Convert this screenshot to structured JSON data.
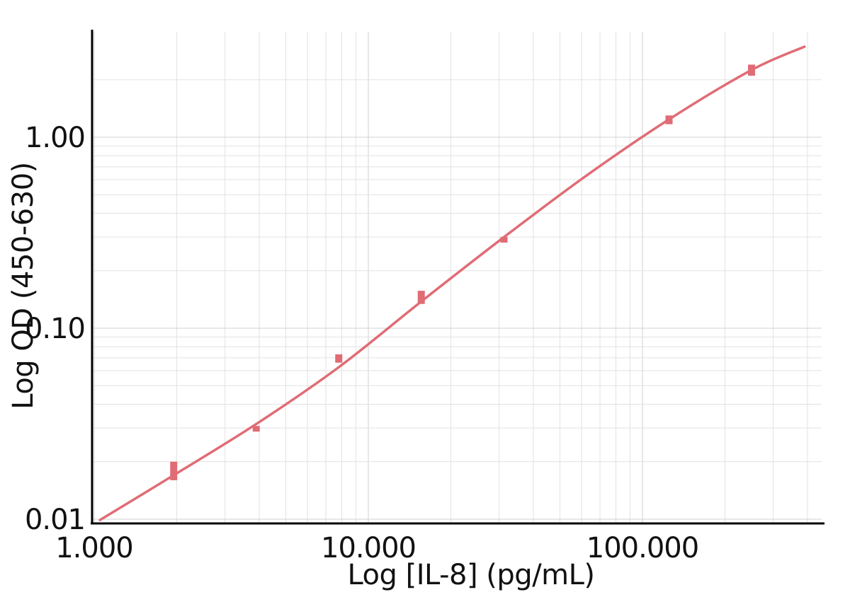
{
  "chart_data": {
    "type": "scatter",
    "xlabel": "Log [IL-8] (pg/mL)",
    "ylabel": "Log OD (450-630)",
    "x_scale": "log",
    "y_scale": "log",
    "xlim": [
      1,
      420
    ],
    "ylim": [
      0.01,
      2.6
    ],
    "grid": true,
    "x_ticks": [
      {
        "value": 1,
        "label": "1.000"
      },
      {
        "value": 10,
        "label": "10.000"
      },
      {
        "value": 100,
        "label": "100.000"
      }
    ],
    "y_ticks": [
      {
        "value": 0.01,
        "label": "0.01"
      },
      {
        "value": 0.1,
        "label": "0.10"
      },
      {
        "value": 1,
        "label": "1.00"
      }
    ],
    "series": [
      {
        "color": "#e06c75",
        "points": [
          {
            "x": 1.95,
            "y": 0.018,
            "ylow": 0.016,
            "yhigh": 0.02
          },
          {
            "x": 3.9,
            "y": 0.0297,
            "ylow": 0.029,
            "yhigh": 0.0305
          },
          {
            "x": 7.8,
            "y": 0.069,
            "ylow": 0.066,
            "yhigh": 0.073
          },
          {
            "x": 15.6,
            "y": 0.145,
            "ylow": 0.134,
            "yhigh": 0.157
          },
          {
            "x": 31.25,
            "y": 0.29,
            "ylow": 0.285,
            "yhigh": 0.296
          },
          {
            "x": 125,
            "y": 1.23,
            "ylow": 1.17,
            "yhigh": 1.3
          },
          {
            "x": 250,
            "y": 2.25,
            "ylow": 2.1,
            "yhigh": 2.4
          }
        ],
        "fit_curve": {
          "x": [
            1.05,
            1.95,
            3.9,
            7.8,
            15.6,
            31.25,
            62.5,
            125,
            250,
            390
          ],
          "y": [
            0.0099,
            0.017,
            0.0315,
            0.0625,
            0.138,
            0.3,
            0.63,
            1.24,
            2.25,
            2.98
          ]
        }
      }
    ]
  }
}
